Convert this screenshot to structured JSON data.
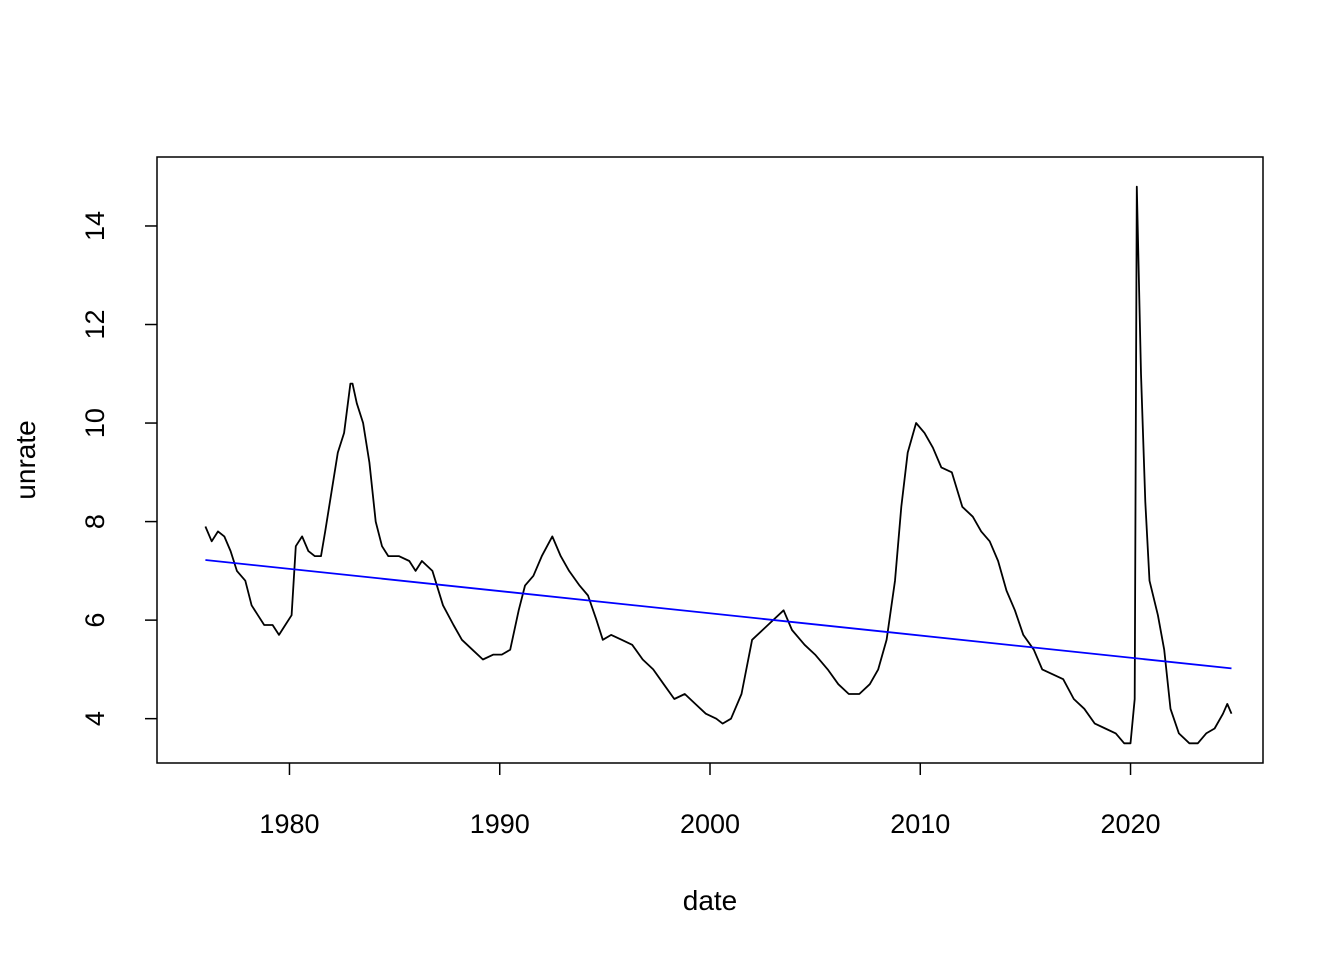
{
  "chart_data": {
    "type": "line",
    "title": "",
    "xlabel": "date",
    "ylabel": "unrate",
    "xlim": [
      1973.7,
      2026.3
    ],
    "ylim": [
      3.1,
      15.4
    ],
    "x_ticks": [
      1980,
      1990,
      2000,
      2010,
      2020
    ],
    "y_ticks": [
      4,
      6,
      8,
      10,
      12,
      14
    ],
    "x_tick_labels": [
      "1980",
      "1990",
      "2000",
      "2010",
      "2020"
    ],
    "y_tick_labels": [
      "4",
      "6",
      "8",
      "10",
      "12",
      "14"
    ],
    "grid": false,
    "legend": "none",
    "series": [
      {
        "color": "#000000",
        "points": [
          [
            1976.0,
            7.9
          ],
          [
            1976.3,
            7.6
          ],
          [
            1976.6,
            7.8
          ],
          [
            1976.9,
            7.7
          ],
          [
            1977.2,
            7.4
          ],
          [
            1977.5,
            7.0
          ],
          [
            1977.9,
            6.8
          ],
          [
            1978.2,
            6.3
          ],
          [
            1978.5,
            6.1
          ],
          [
            1978.8,
            5.9
          ],
          [
            1979.2,
            5.9
          ],
          [
            1979.5,
            5.7
          ],
          [
            1979.8,
            5.9
          ],
          [
            1980.1,
            6.1
          ],
          [
            1980.3,
            7.5
          ],
          [
            1980.6,
            7.7
          ],
          [
            1980.9,
            7.4
          ],
          [
            1981.2,
            7.3
          ],
          [
            1981.5,
            7.3
          ],
          [
            1981.7,
            7.8
          ],
          [
            1982.0,
            8.6
          ],
          [
            1982.3,
            9.4
          ],
          [
            1982.6,
            9.8
          ],
          [
            1982.9,
            10.8
          ],
          [
            1983.0,
            10.8
          ],
          [
            1983.2,
            10.4
          ],
          [
            1983.5,
            10.0
          ],
          [
            1983.8,
            9.2
          ],
          [
            1984.1,
            8.0
          ],
          [
            1984.4,
            7.5
          ],
          [
            1984.7,
            7.3
          ],
          [
            1985.2,
            7.3
          ],
          [
            1985.7,
            7.2
          ],
          [
            1986.0,
            7.0
          ],
          [
            1986.3,
            7.2
          ],
          [
            1986.8,
            7.0
          ],
          [
            1987.3,
            6.3
          ],
          [
            1987.8,
            5.9
          ],
          [
            1988.2,
            5.6
          ],
          [
            1988.7,
            5.4
          ],
          [
            1989.2,
            5.2
          ],
          [
            1989.7,
            5.3
          ],
          [
            1990.1,
            5.3
          ],
          [
            1990.5,
            5.4
          ],
          [
            1990.9,
            6.2
          ],
          [
            1991.2,
            6.7
          ],
          [
            1991.6,
            6.9
          ],
          [
            1992.0,
            7.3
          ],
          [
            1992.5,
            7.7
          ],
          [
            1992.9,
            7.3
          ],
          [
            1993.3,
            7.0
          ],
          [
            1993.8,
            6.7
          ],
          [
            1994.2,
            6.5
          ],
          [
            1994.6,
            6.0
          ],
          [
            1994.9,
            5.6
          ],
          [
            1995.3,
            5.7
          ],
          [
            1995.8,
            5.6
          ],
          [
            1996.3,
            5.5
          ],
          [
            1996.8,
            5.2
          ],
          [
            1997.3,
            5.0
          ],
          [
            1997.8,
            4.7
          ],
          [
            1998.3,
            4.4
          ],
          [
            1998.8,
            4.5
          ],
          [
            1999.3,
            4.3
          ],
          [
            1999.8,
            4.1
          ],
          [
            2000.3,
            4.0
          ],
          [
            2000.6,
            3.9
          ],
          [
            2001.0,
            4.0
          ],
          [
            2001.5,
            4.5
          ],
          [
            2002.0,
            5.6
          ],
          [
            2002.5,
            5.8
          ],
          [
            2003.0,
            6.0
          ],
          [
            2003.5,
            6.2
          ],
          [
            2003.9,
            5.8
          ],
          [
            2004.5,
            5.5
          ],
          [
            2005.0,
            5.3
          ],
          [
            2005.6,
            5.0
          ],
          [
            2006.1,
            4.7
          ],
          [
            2006.6,
            4.5
          ],
          [
            2007.1,
            4.5
          ],
          [
            2007.6,
            4.7
          ],
          [
            2008.0,
            5.0
          ],
          [
            2008.4,
            5.6
          ],
          [
            2008.8,
            6.8
          ],
          [
            2009.1,
            8.3
          ],
          [
            2009.4,
            9.4
          ],
          [
            2009.8,
            10.0
          ],
          [
            2010.2,
            9.8
          ],
          [
            2010.6,
            9.5
          ],
          [
            2011.0,
            9.1
          ],
          [
            2011.5,
            9.0
          ],
          [
            2012.0,
            8.3
          ],
          [
            2012.5,
            8.1
          ],
          [
            2012.9,
            7.8
          ],
          [
            2013.3,
            7.6
          ],
          [
            2013.7,
            7.2
          ],
          [
            2014.1,
            6.6
          ],
          [
            2014.5,
            6.2
          ],
          [
            2014.9,
            5.7
          ],
          [
            2015.4,
            5.4
          ],
          [
            2015.8,
            5.0
          ],
          [
            2016.3,
            4.9
          ],
          [
            2016.8,
            4.8
          ],
          [
            2017.3,
            4.4
          ],
          [
            2017.8,
            4.2
          ],
          [
            2018.3,
            3.9
          ],
          [
            2018.8,
            3.8
          ],
          [
            2019.3,
            3.7
          ],
          [
            2019.7,
            3.5
          ],
          [
            2020.0,
            3.5
          ],
          [
            2020.2,
            4.4
          ],
          [
            2020.3,
            14.8
          ],
          [
            2020.5,
            11.0
          ],
          [
            2020.7,
            8.4
          ],
          [
            2020.9,
            6.8
          ],
          [
            2021.3,
            6.1
          ],
          [
            2021.6,
            5.4
          ],
          [
            2021.9,
            4.2
          ],
          [
            2022.3,
            3.7
          ],
          [
            2022.8,
            3.5
          ],
          [
            2023.2,
            3.5
          ],
          [
            2023.6,
            3.7
          ],
          [
            2024.0,
            3.8
          ],
          [
            2024.4,
            4.1
          ],
          [
            2024.6,
            4.3
          ],
          [
            2024.8,
            4.1
          ]
        ]
      },
      {
        "color": "#0000ff",
        "points": [
          [
            1976.0,
            7.22
          ],
          [
            2024.8,
            5.02
          ]
        ]
      }
    ]
  }
}
